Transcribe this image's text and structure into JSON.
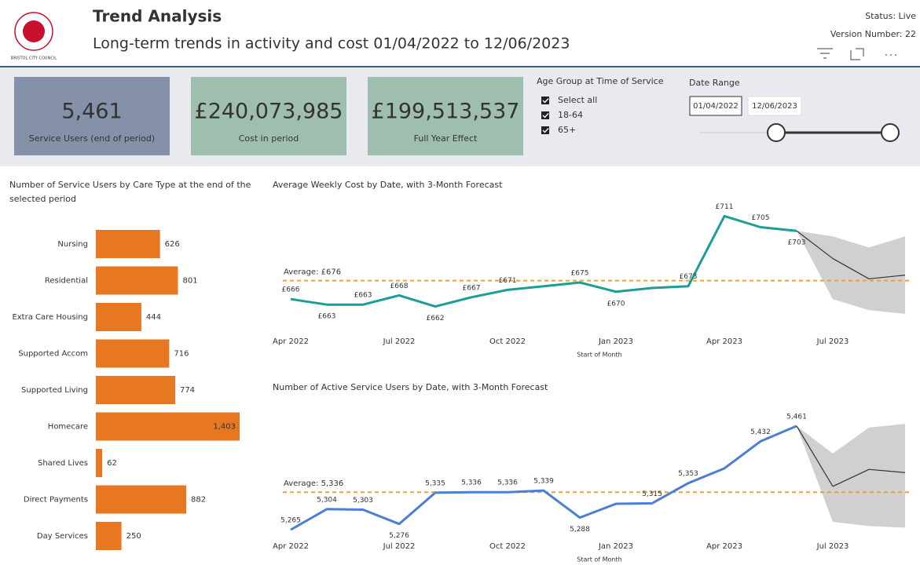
{
  "header": {
    "title": "Trend Analysis",
    "subtitle": "Long-term trends in activity and cost  01/04/2022 to 12/06/2023",
    "status": "Status: Live",
    "version": "Version Number: 22",
    "logo": "BRISTOL CITY COUNCIL"
  },
  "kpis": [
    {
      "value": "5,461",
      "label": "Service Users (end of period)",
      "color": "#8591a8"
    },
    {
      "value": "£240,073,985",
      "label": "Cost in period",
      "color": "#9fbfae"
    },
    {
      "value": "£199,513,537",
      "label": "Full Year Effect",
      "color": "#9fbfae"
    }
  ],
  "filters": {
    "age_group": {
      "title": "Age Group at Time of Service",
      "options": [
        "Select all",
        "18-64",
        "65+"
      ]
    },
    "date_range": {
      "title": "Date Range",
      "start": "01/04/2022",
      "end": "12/06/2023"
    }
  },
  "chart_data": [
    {
      "type": "bar",
      "orientation": "horizontal",
      "title": "Number of Service Users by Care Type at the end of the selected period",
      "categories": [
        "Nursing",
        "Residential",
        "Extra Care Housing",
        "Supported Accom",
        "Supported Living",
        "Homecare",
        "Shared Lives",
        "Direct Payments",
        "Day Services"
      ],
      "values": [
        626,
        801,
        444,
        716,
        774,
        1403,
        62,
        882,
        250
      ],
      "value_labels": [
        "626",
        "801",
        "444",
        "716",
        "774",
        "1,403",
        "62",
        "882",
        "250"
      ],
      "color": "#e87722"
    },
    {
      "type": "line",
      "title": "Average Weekly Cost by Date, with 3-Month Forecast",
      "xlabel": "Start of Month",
      "categories": [
        "Apr 2022",
        null,
        null,
        "Jul 2022",
        null,
        null,
        "Oct 2022",
        null,
        null,
        "Jan 2023",
        null,
        null,
        "Apr 2023",
        null,
        null,
        "Jul 2023",
        null,
        null
      ],
      "ylim": [
        655,
        715
      ],
      "series": [
        {
          "color": "#1a9e96",
          "values": [
            666,
            663,
            663,
            668,
            662,
            667,
            671,
            673,
            675,
            670,
            672,
            673,
            711,
            705,
            703,
            null,
            null,
            null
          ],
          "value_labels": [
            "£666",
            "£663",
            "£663",
            "£668",
            "£662",
            "£667",
            "£671",
            null,
            "£675",
            "£670",
            null,
            "£673",
            "£711",
            "£705",
            "£703",
            null,
            null,
            null
          ]
        },
        {
          "color": "#333333",
          "values": [
            null,
            null,
            null,
            null,
            null,
            null,
            null,
            null,
            null,
            null,
            null,
            null,
            null,
            null,
            null,
            688,
            677,
            679
          ]
        }
      ],
      "forecast_upper": [
        null,
        null,
        null,
        null,
        null,
        null,
        null,
        null,
        null,
        null,
        null,
        null,
        null,
        null,
        null,
        700,
        694,
        700
      ],
      "forecast_lower": [
        null,
        null,
        null,
        null,
        null,
        null,
        null,
        null,
        null,
        null,
        null,
        null,
        null,
        null,
        null,
        666,
        660,
        658
      ],
      "band_color": "#c8c8c8",
      "average": {
        "value": 676,
        "label": "Average: £676",
        "color": "#f0a030"
      }
    },
    {
      "type": "line",
      "title": "Number of Active Service Users by Date, with 3-Month Forecast",
      "xlabel": "Start of Month",
      "categories": [
        "Apr 2022",
        null,
        null,
        "Jul 2022",
        null,
        null,
        "Oct 2022",
        null,
        null,
        "Jan 2023",
        null,
        null,
        "Apr 2023",
        null,
        null,
        "Jul 2023",
        null,
        null
      ],
      "ylim": [
        5240,
        5480
      ],
      "series": [
        {
          "color": "#4a7fd4",
          "values": [
            5265,
            5304,
            5303,
            5276,
            5335,
            5336,
            5336,
            5339,
            5288,
            5314,
            5315,
            5353,
            5381,
            5432,
            5461,
            null,
            null,
            null
          ],
          "value_labels": [
            "5,265",
            "5,304",
            "5,303",
            "5,276",
            "5,335",
            "5,336",
            "5,336",
            "5,339",
            "5,288",
            null,
            "5,315",
            "5,353",
            null,
            "5,432",
            "5,461",
            null,
            null,
            null
          ]
        },
        {
          "color": "#333333",
          "values": [
            null,
            null,
            null,
            null,
            null,
            null,
            null,
            null,
            null,
            null,
            null,
            null,
            null,
            null,
            null,
            5347,
            5379,
            5373
          ]
        }
      ],
      "forecast_upper": [
        null,
        null,
        null,
        null,
        null,
        null,
        null,
        null,
        null,
        null,
        null,
        null,
        null,
        null,
        null,
        5409,
        5458,
        5465
      ],
      "forecast_lower": [
        null,
        null,
        null,
        null,
        null,
        null,
        null,
        null,
        null,
        null,
        null,
        null,
        null,
        null,
        null,
        5280,
        5272,
        5269
      ],
      "band_color": "#c8c8c8",
      "average": {
        "value": 5336,
        "label": "Average: 5,336",
        "color": "#f0a030"
      }
    }
  ]
}
